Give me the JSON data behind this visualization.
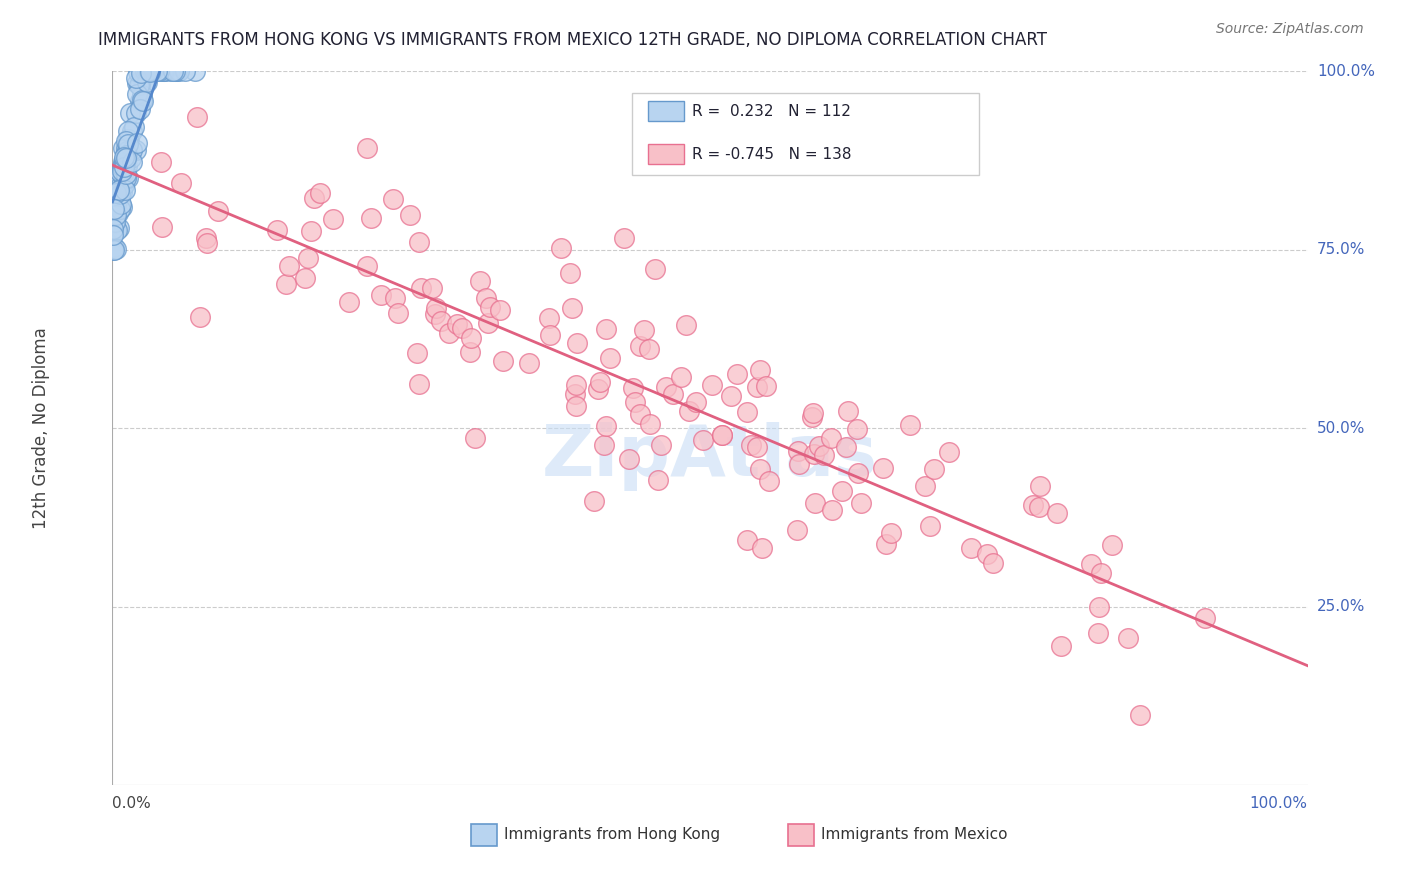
{
  "title": "IMMIGRANTS FROM HONG KONG VS IMMIGRANTS FROM MEXICO 12TH GRADE, NO DIPLOMA CORRELATION CHART",
  "source": "Source: ZipAtlas.com",
  "ylabel": "12th Grade, No Diploma",
  "legend_label1": "Immigrants from Hong Kong",
  "legend_label2": "Immigrants from Mexico",
  "R1": 0.232,
  "N1": 112,
  "R2": -0.745,
  "N2": 138,
  "hk_color": "#b8d4f0",
  "hk_edge_color": "#6699cc",
  "hk_line_color": "#5588cc",
  "mx_color": "#f8c0c8",
  "mx_edge_color": "#e87090",
  "mx_line_color": "#e06080",
  "background_color": "#ffffff",
  "grid_color": "#cccccc",
  "title_color": "#222233",
  "axis_label_color": "#4466bb",
  "watermark": "ZipAtlas",
  "watermark_color": "#c8ddf5",
  "right_label_color": "#4466bb",
  "title_fontsize": 12,
  "ylabel_fontsize": 12,
  "tick_label_fontsize": 11,
  "legend_fontsize": 11,
  "source_fontsize": 10
}
